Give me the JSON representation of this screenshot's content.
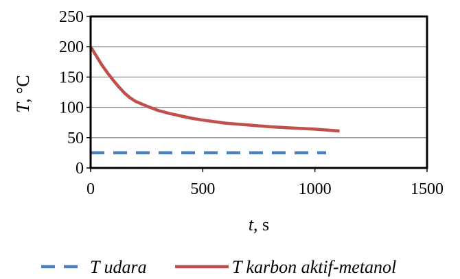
{
  "chart_data": {
    "type": "line",
    "xlabel_var": "t",
    "xlabel_unit": ", s",
    "ylabel_var": "T",
    "ylabel_unit": ", °C",
    "xlim": [
      0,
      1500
    ],
    "ylim": [
      0,
      250
    ],
    "x_ticks": [
      0,
      500,
      1000,
      1500
    ],
    "y_ticks": [
      0,
      50,
      100,
      150,
      200,
      250
    ],
    "grid": "horizontal",
    "legend_position": "bottom",
    "series": [
      {
        "name": "T udara",
        "color": "#4f81bd",
        "dash": "dashed",
        "x": [
          0,
          100,
          200,
          300,
          400,
          500,
          600,
          700,
          800,
          900,
          1000,
          1050
        ],
        "y": [
          25,
          25,
          25,
          25,
          25,
          25,
          25,
          25,
          25,
          25,
          25,
          25
        ]
      },
      {
        "name": "T karbon aktif-metanol",
        "color": "#c0504d",
        "dash": "solid",
        "x": [
          0,
          25,
          50,
          75,
          100,
          125,
          150,
          175,
          200,
          225,
          250,
          300,
          350,
          400,
          450,
          500,
          600,
          700,
          800,
          900,
          1000,
          1110
        ],
        "y": [
          200,
          185,
          170,
          157,
          145,
          134,
          124,
          116,
          110,
          106,
          102,
          95,
          90,
          86,
          82,
          79,
          74,
          71,
          68,
          66,
          64,
          61
        ]
      }
    ]
  }
}
